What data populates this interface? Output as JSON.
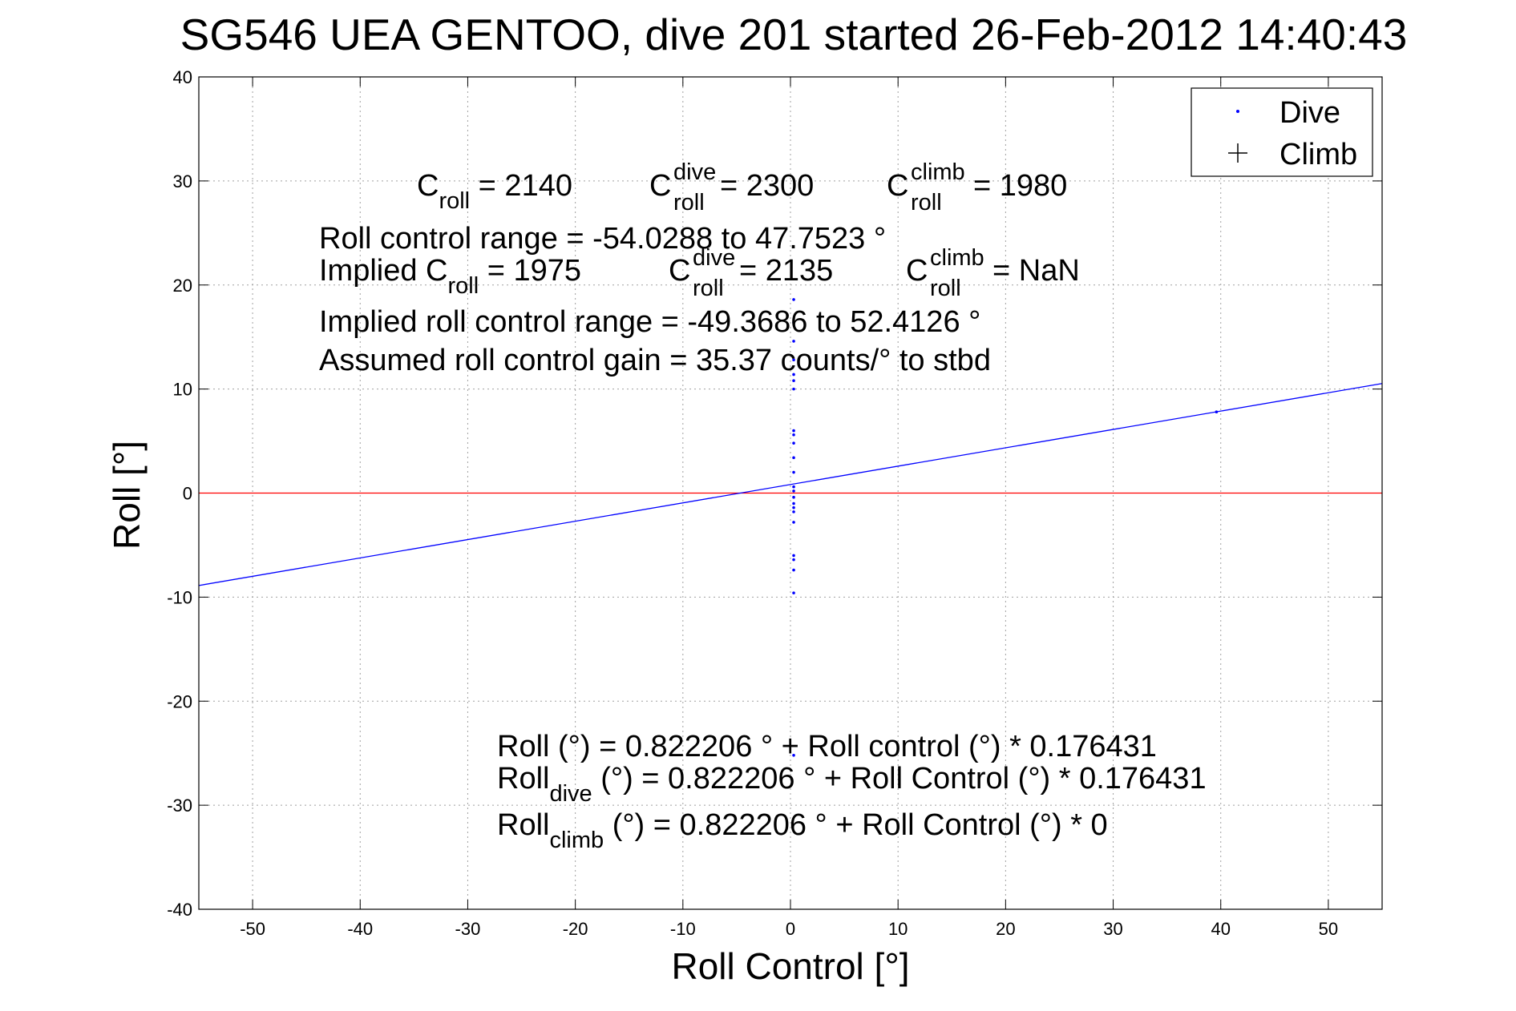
{
  "chart_data": {
    "type": "scatter",
    "title": "SG546 UEA GENTOO, dive 201 started 26-Feb-2012 14:40:43",
    "xlabel": "Roll Control [°]",
    "ylabel": "Roll [°]",
    "xlim": [
      -55,
      55
    ],
    "ylim": [
      -40,
      40
    ],
    "xticks": [
      -50,
      -40,
      -30,
      -20,
      -10,
      0,
      10,
      20,
      30,
      40,
      50
    ],
    "yticks": [
      -40,
      -30,
      -20,
      -10,
      0,
      10,
      20,
      30,
      40
    ],
    "grid": true,
    "legend_position": "top-right",
    "colors": {
      "dive": "#0000ff",
      "climb": "#000000",
      "fit": "#0000ff",
      "zero": "#ff0000"
    },
    "series": [
      {
        "name": "Dive",
        "marker": "dot",
        "color": "#0000ff",
        "points": [
          [
            0.3,
            18.6
          ],
          [
            0.3,
            16.4
          ],
          [
            0.3,
            14.6
          ],
          [
            0.3,
            12.8
          ],
          [
            0.3,
            11.4
          ],
          [
            0.3,
            10.8
          ],
          [
            0.3,
            10.0
          ],
          [
            0.3,
            6.0
          ],
          [
            0.3,
            5.6
          ],
          [
            0.3,
            4.8
          ],
          [
            0.3,
            3.4
          ],
          [
            0.3,
            2.0
          ],
          [
            0.3,
            0.6
          ],
          [
            0.3,
            0.2
          ],
          [
            0.3,
            -0.4
          ],
          [
            0.3,
            -1.0
          ],
          [
            0.3,
            -1.4
          ],
          [
            0.3,
            -1.8
          ],
          [
            0.3,
            -2.8
          ],
          [
            0.3,
            -6.0
          ],
          [
            0.3,
            -6.4
          ],
          [
            0.3,
            -7.4
          ],
          [
            0.3,
            -9.6
          ],
          [
            0.3,
            -25.2
          ],
          [
            39.6,
            7.8
          ]
        ]
      },
      {
        "name": "Climb",
        "marker": "plus",
        "color": "#000000",
        "points": []
      }
    ],
    "fit_line": {
      "intercept": 0.822206,
      "slope": 0.176431,
      "color": "#0000ff"
    },
    "zero_line": {
      "y": 0,
      "color": "#ff0000"
    },
    "annotations": {
      "croll": {
        "base": "C",
        "sub": "roll",
        "rest": " = 2140"
      },
      "croll_dive": {
        "base": "C",
        "sub": "roll",
        "sup": "dive",
        "rest": " = 2300"
      },
      "croll_climb": {
        "base": "C",
        "sub": "roll",
        "sup": "climb",
        "rest": " = 1980"
      },
      "range": "Roll control range = -54.0288 to 47.7523 °",
      "implied_prefix": "Implied C",
      "implied_sub": "roll",
      "implied_rest": " = 1975",
      "implied_dive": {
        "base": "C",
        "sub": "roll",
        "sup": "dive",
        "rest": " = 2135"
      },
      "implied_climb": {
        "base": "C",
        "sub": "roll",
        "sup": "climb",
        "rest": " =  NaN"
      },
      "implied_range": "Implied roll control range = -49.3686 to 52.4126 °",
      "gain": "Assumed roll control gain = 35.37 counts/° to stbd",
      "eq_roll": "Roll (°) = 0.822206 ° + Roll control (°) * 0.176431",
      "eq_dive_base": "Roll",
      "eq_dive_sub": "dive",
      "eq_dive_rest": " (°) = 0.822206 ° + Roll Control (°) * 0.176431",
      "eq_climb_base": "Roll",
      "eq_climb_sub": "climb",
      "eq_climb_rest": " (°) = 0.822206 ° + Roll Control (°) * 0"
    }
  }
}
